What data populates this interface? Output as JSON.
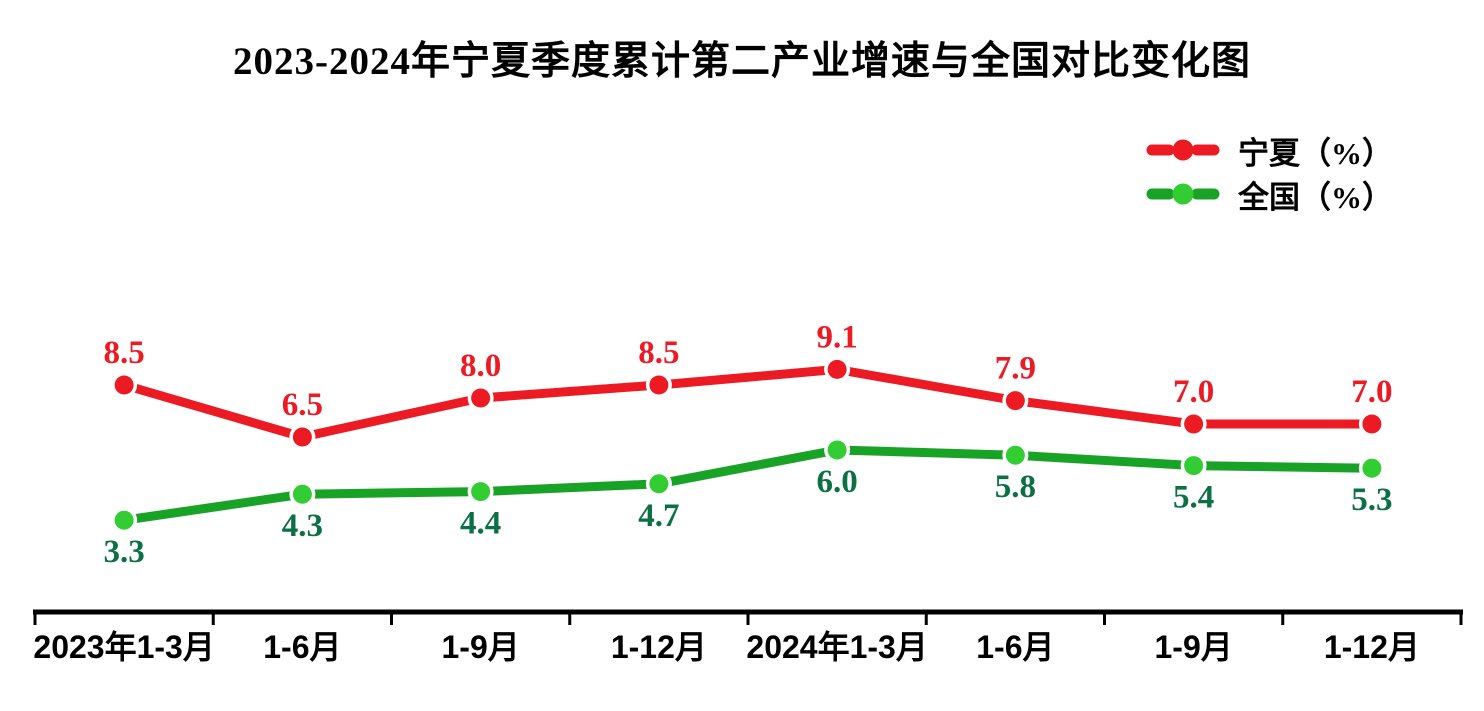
{
  "chart_data": {
    "type": "line",
    "title": "2023-2024年宁夏季度累计第二产业增速与全国对比变化图",
    "categories": [
      "2023年1-3月",
      "1-6月",
      "1-9月",
      "1-12月",
      "2024年1-3月",
      "1-6月",
      "1-9月",
      "1-12月"
    ],
    "series": [
      {
        "name": "宁夏（%）",
        "values": [
          8.5,
          6.5,
          8.0,
          8.5,
          9.1,
          7.9,
          7.0,
          7.0
        ],
        "line_color": "#EC1B23",
        "marker_color": "#EC1B23",
        "label_color": "#EC1B23",
        "label_position": "above"
      },
      {
        "name": "全国（%）",
        "values": [
          3.3,
          4.3,
          4.4,
          4.7,
          6.0,
          5.8,
          5.4,
          5.3
        ],
        "line_color": "#18A327",
        "marker_color": "#32CD32",
        "label_color": "#0B7044",
        "label_position": "below"
      }
    ],
    "xlabel": "",
    "ylabel": "",
    "ylim": [
      0,
      12
    ],
    "grid": false,
    "data_labels": true,
    "legend_position": "top-right",
    "axis_color": "#000000",
    "x_axis_label_color": "#000000"
  }
}
